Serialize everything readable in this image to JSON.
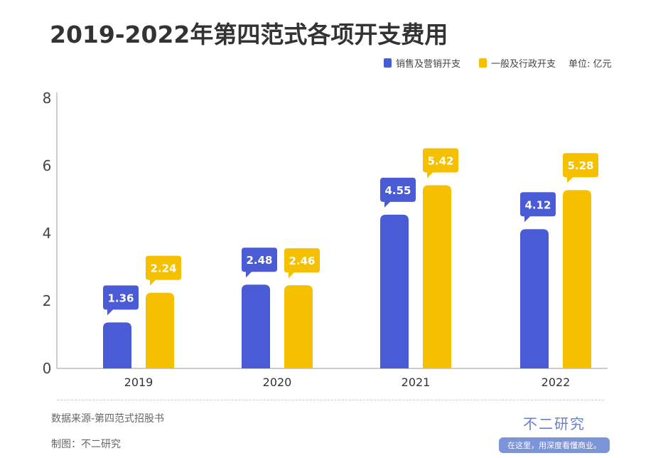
{
  "chart_data": {
    "type": "bar",
    "title": "2019-2022年第四范式各项开支费用",
    "categories": [
      "2019",
      "2020",
      "2021",
      "2022"
    ],
    "series": [
      {
        "name": "销售及营销开支",
        "values": [
          1.36,
          2.48,
          4.55,
          4.12
        ],
        "color": "#4a5bd6"
      },
      {
        "name": "一般及行政开支",
        "values": [
          2.24,
          2.46,
          5.42,
          5.28
        ],
        "color": "#f5c000"
      }
    ],
    "unit": "单位: 亿元",
    "ylim": [
      0,
      8
    ],
    "yticks": [
      0,
      2,
      4,
      6,
      8
    ],
    "grid": false,
    "legend": "top-right"
  },
  "footer": {
    "source": "数据来源-第四范式招股书",
    "maker": "制图：不二研究",
    "brand_name": "不二研究",
    "brand_slogan": "在这里，用深度看懂商业。"
  }
}
